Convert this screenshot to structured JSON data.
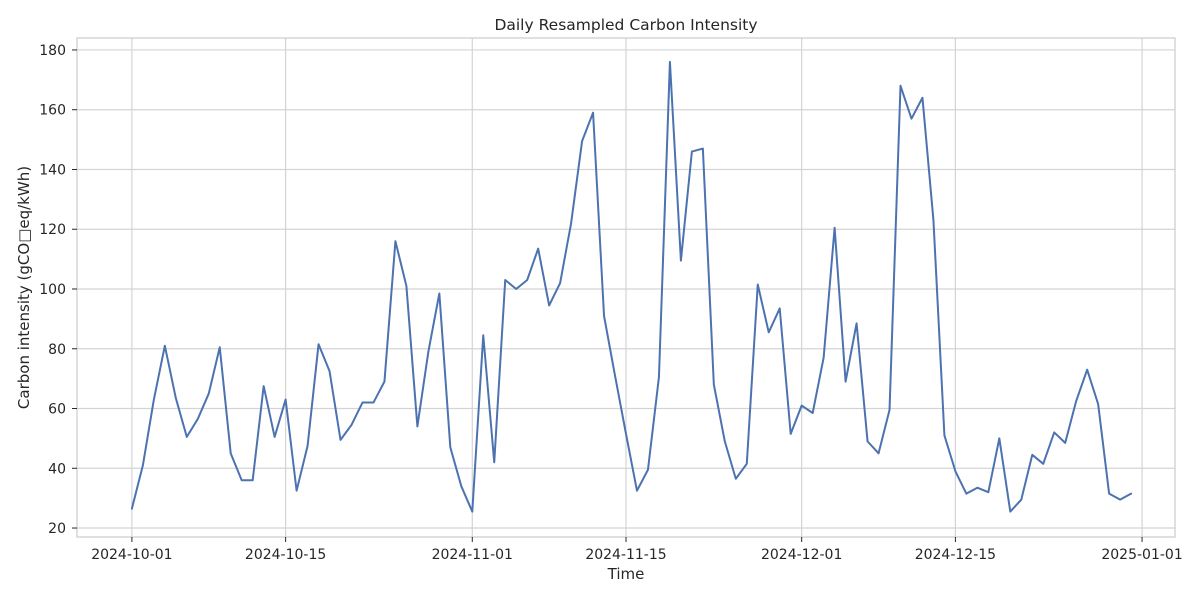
{
  "chart_data": {
    "type": "line",
    "title": "Daily Resampled Carbon Intensity",
    "xlabel": "Time",
    "ylabel": "Carbon intensity (gCO□eq/kWh)",
    "x_start": "2024-10-01",
    "x_end": "2024-12-31",
    "x_ticks": [
      "2024-10-01",
      "2024-10-15",
      "2024-11-01",
      "2024-11-15",
      "2024-12-01",
      "2024-12-15",
      "2025-01-01"
    ],
    "y_ticks": [
      20,
      40,
      60,
      80,
      100,
      120,
      140,
      160,
      180
    ],
    "xlim": [
      "2024-09-26",
      "2025-01-04"
    ],
    "ylim": [
      17,
      184
    ],
    "grid": true,
    "colors": {
      "line": "#4c72b0",
      "grid": "#d4d4d4",
      "frame": "#cccccc"
    },
    "series": [
      {
        "values": [
          26.5,
          41,
          63,
          81,
          63.5,
          50.5,
          56.5,
          65,
          80.5,
          45,
          36,
          36,
          67.5,
          50.5,
          63,
          32.5,
          47.5,
          81.5,
          72.5,
          49.5,
          54.5,
          62,
          62,
          69,
          116,
          101,
          54,
          79,
          98.5,
          47,
          34,
          25.5,
          84.5,
          42,
          103,
          100,
          103,
          113.5,
          94.5,
          102,
          122,
          149.5,
          159,
          91,
          71,
          51.5,
          32.5,
          39.5,
          70.5,
          176,
          109.5,
          146,
          147,
          68,
          49,
          36.5,
          41.5,
          101.5,
          85.5,
          93.5,
          51.5,
          61,
          58.5,
          77,
          120.5,
          69,
          88.5,
          49,
          45,
          59.5,
          168,
          157,
          164,
          123,
          51,
          39,
          31.5,
          33.5,
          32,
          50,
          25.5,
          29.5,
          44.5,
          41.5,
          52,
          48.5,
          62.5,
          73,
          61.5,
          31.5,
          29.5,
          31.5
        ]
      }
    ]
  }
}
